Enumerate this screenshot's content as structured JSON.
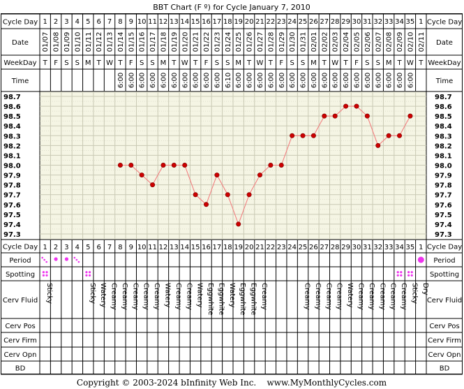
{
  "title": "BBT Chart (F º) for Cycle January 7, 2010",
  "labels": {
    "cycle_day": "Cycle Day",
    "date": "Date",
    "weekday": "WeekDay",
    "time": "Time",
    "period": "Period",
    "spotting": "Spotting",
    "cerv_fluid": "Cerv Fluid",
    "cerv_pos": "Cerv Pos",
    "cerv_firm": "Cerv Firm",
    "cerv_opn": "Cerv Opn",
    "bd": "BD"
  },
  "footer": "Copyright © 2003-2024 bInfinity Web Inc.    www.MyMonthlyCycles.com",
  "colors": {
    "plot_bg": "#f5f5e4",
    "grid": "#c9c9b4",
    "line": "#f28080",
    "point": "#cc0000",
    "dot": "#ee33ee"
  },
  "chart_data": {
    "type": "line",
    "title": "BBT Chart (F º) for Cycle January 7, 2010",
    "ylim": [
      97.3,
      98.7
    ],
    "yticks": [
      "98.7",
      "98.6",
      "98.5",
      "98.4",
      "98.3",
      "98.2",
      "98.1",
      "98.0",
      "97.9",
      "97.8",
      "97.7",
      "97.6",
      "97.5",
      "97.4",
      "97.3"
    ],
    "days": [
      "1",
      "2",
      "3",
      "4",
      "5",
      "6",
      "7",
      "8",
      "9",
      "10",
      "11",
      "12",
      "13",
      "14",
      "15",
      "16",
      "17",
      "18",
      "19",
      "20",
      "21",
      "22",
      "23",
      "24",
      "25",
      "26",
      "27",
      "28",
      "29",
      "30",
      "31",
      "32",
      "33",
      "34",
      "35",
      "1"
    ],
    "dates": [
      "01/07",
      "01/08",
      "01/09",
      "01/10",
      "01/11",
      "01/12",
      "01/13",
      "01/14",
      "01/15",
      "01/16",
      "01/17",
      "01/18",
      "01/19",
      "01/20",
      "01/21",
      "01/22",
      "01/23",
      "01/24",
      "01/25",
      "01/26",
      "01/27",
      "01/28",
      "01/29",
      "01/30",
      "01/31",
      "02/01",
      "02/02",
      "02/03",
      "02/04",
      "02/05",
      "02/06",
      "02/07",
      "02/08",
      "02/09",
      "02/10",
      "02/11"
    ],
    "weekdays": [
      "T",
      "F",
      "S",
      "S",
      "M",
      "T",
      "W",
      "T",
      "F",
      "S",
      "S",
      "M",
      "T",
      "W",
      "T",
      "F",
      "S",
      "S",
      "M",
      "T",
      "W",
      "T",
      "F",
      "S",
      "S",
      "M",
      "T",
      "W",
      "T",
      "F",
      "S",
      "S",
      "M",
      "T",
      "W",
      "T"
    ],
    "times": [
      "",
      "",
      "",
      "",
      "",
      "",
      "",
      "6:00",
      "6:00",
      "6:00",
      "6:00",
      "6:00",
      "6:00",
      "6:00",
      "6:00",
      "6:00",
      "6:00",
      "6:10",
      "6:00",
      "6:00",
      "6:00",
      "6:00",
      "6:00",
      "6:00",
      "6:00",
      "6:00",
      "6:00",
      "6:00",
      "6:00",
      "6:00",
      "6:00",
      "6:00",
      "6:00",
      "6:00",
      "6:00",
      ""
    ],
    "temps": [
      null,
      null,
      null,
      null,
      null,
      null,
      null,
      98.0,
      98.0,
      97.9,
      97.8,
      98.0,
      98.0,
      98.0,
      97.7,
      97.6,
      97.9,
      97.7,
      97.4,
      97.7,
      97.9,
      98.0,
      98.0,
      98.3,
      98.3,
      98.3,
      98.5,
      98.5,
      98.6,
      98.6,
      98.5,
      98.2,
      98.3,
      98.3,
      98.5,
      null
    ],
    "period": [
      "light",
      "heavy",
      "heavy",
      "light",
      "",
      "",
      "",
      "",
      "",
      "",
      "",
      "",
      "",
      "",
      "",
      "",
      "",
      "",
      "",
      "",
      "",
      "",
      "",
      "",
      "",
      "",
      "",
      "",
      "",
      "",
      "",
      "",
      "",
      "",
      "",
      "heavy-large"
    ],
    "spotting": [
      true,
      false,
      false,
      false,
      true,
      false,
      false,
      false,
      false,
      false,
      false,
      false,
      false,
      false,
      false,
      false,
      false,
      false,
      false,
      false,
      false,
      false,
      false,
      false,
      false,
      false,
      false,
      false,
      false,
      false,
      false,
      false,
      false,
      true,
      true,
      false
    ],
    "cerv_fluid": [
      "Sticky",
      "",
      "",
      "",
      "Sticky",
      "Watery",
      "Creamy",
      "Creamy",
      "Creamy",
      "Creamy",
      "Creamy",
      "Watery",
      "Creamy",
      "Creamy",
      "Watery",
      "Eggwhite",
      "Eggwhite",
      "Watery",
      "Eggwhite",
      "Eggwhite",
      "Creamy",
      "",
      "",
      "",
      "Creamy",
      "Creamy",
      "Creamy",
      "Creamy",
      "Watery",
      "Creamy",
      "Creamy",
      "Creamy",
      "Creamy",
      "Creamy",
      "Sticky",
      "Dry"
    ]
  }
}
